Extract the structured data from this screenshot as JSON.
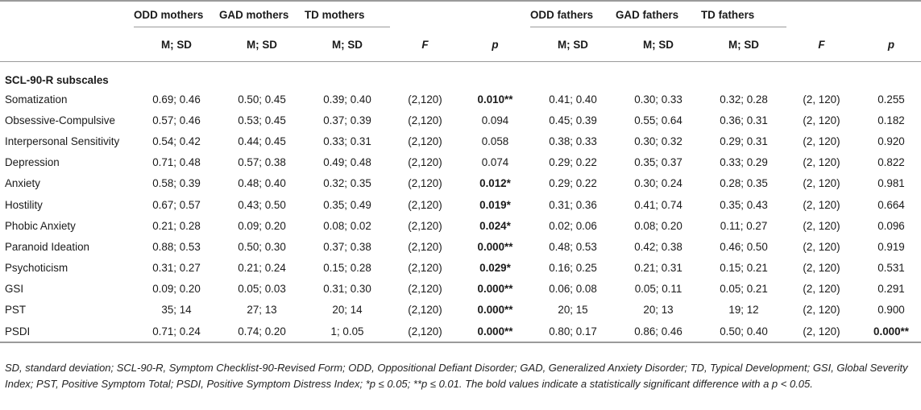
{
  "table": {
    "group_headers": [
      "ODD mothers",
      "GAD mothers",
      "TD mothers",
      "ODD fathers",
      "GAD fathers",
      "TD fathers"
    ],
    "sub_headers": [
      "M; SD",
      "M; SD",
      "M; SD",
      "F",
      "p",
      "M; SD",
      "M; SD",
      "M; SD",
      "F",
      "p"
    ],
    "section_label": "SCL-90-R subscales",
    "rows": [
      {
        "label": "Somatization",
        "cells": [
          "0.69; 0.46",
          "0.50; 0.45",
          "0.39; 0.40",
          "(2,120)",
          "0.010**",
          "0.41; 0.40",
          "0.30; 0.33",
          "0.32; 0.28",
          "(2, 120)",
          "0.255"
        ]
      },
      {
        "label": "Obsessive-Compulsive",
        "cells": [
          "0.57; 0.46",
          "0.53; 0.45",
          "0.37; 0.39",
          "(2,120)",
          "0.094",
          "0.45; 0.39",
          "0.55; 0.64",
          "0.36; 0.31",
          "(2, 120)",
          "0.182"
        ]
      },
      {
        "label": "Interpersonal Sensitivity",
        "cells": [
          "0.54; 0.42",
          "0.44; 0.45",
          "0.33; 0.31",
          "(2,120)",
          "0.058",
          "0.38; 0.33",
          "0.30; 0.32",
          "0.29; 0.31",
          "(2, 120)",
          "0.920"
        ]
      },
      {
        "label": "Depression",
        "cells": [
          "0.71; 0.48",
          "0.57; 0.38",
          "0.49; 0.48",
          "(2,120)",
          "0.074",
          "0.29; 0.22",
          "0.35; 0.37",
          "0.33; 0.29",
          "(2, 120)",
          "0.822"
        ]
      },
      {
        "label": "Anxiety",
        "cells": [
          "0.58; 0.39",
          "0.48; 0.40",
          "0.32; 0.35",
          "(2,120)",
          "0.012*",
          "0.29; 0.22",
          "0.30; 0.24",
          "0.28; 0.35",
          "(2, 120)",
          "0.981"
        ]
      },
      {
        "label": "Hostility",
        "cells": [
          "0.67; 0.57",
          "0.43; 0.50",
          "0.35; 0.49",
          "(2,120)",
          "0.019*",
          "0.31; 0.36",
          "0.41; 0.74",
          "0.35; 0.43",
          "(2, 120)",
          "0.664"
        ]
      },
      {
        "label": "Phobic Anxiety",
        "cells": [
          "0.21; 0.28",
          "0.09; 0.20",
          "0.08; 0.02",
          "(2,120)",
          "0.024*",
          "0.02; 0.06",
          "0.08; 0.20",
          "0.11; 0.27",
          "(2, 120)",
          "0.096"
        ]
      },
      {
        "label": "Paranoid Ideation",
        "cells": [
          "0.88; 0.53",
          "0.50; 0.30",
          "0.37; 0.38",
          "(2,120)",
          "0.000**",
          "0.48; 0.53",
          "0.42; 0.38",
          "0.46; 0.50",
          "(2, 120)",
          "0.919"
        ]
      },
      {
        "label": "Psychoticism",
        "cells": [
          "0.31; 0.27",
          "0.21; 0.24",
          "0.15; 0.28",
          "(2,120)",
          "0.029*",
          "0.16; 0.25",
          "0.21; 0.31",
          "0.15; 0.21",
          "(2, 120)",
          "0.531"
        ]
      },
      {
        "label": "GSI",
        "cells": [
          "0.09; 0.20",
          "0.05; 0.03",
          "0.31; 0.30",
          "(2,120)",
          "0.000**",
          "0.06; 0.08",
          "0.05; 0.11",
          "0.05; 0.21",
          "(2, 120)",
          "0.291"
        ]
      },
      {
        "label": "PST",
        "cells": [
          "35; 14",
          "27; 13",
          "20; 14",
          "(2,120)",
          "0.000**",
          "20; 15",
          "20; 13",
          "19; 12",
          "(2, 120)",
          "0.900"
        ]
      },
      {
        "label": "PSDI",
        "cells": [
          "0.71; 0.24",
          "0.74; 0.20",
          "1; 0.05",
          "(2,120)",
          "0.000**",
          "0.80; 0.17",
          "0.86; 0.46",
          "0.50; 0.40",
          "(2, 120)",
          "0.000**"
        ]
      }
    ],
    "bold_cells": [
      [
        0,
        4
      ],
      [
        4,
        4
      ],
      [
        5,
        4
      ],
      [
        6,
        4
      ],
      [
        7,
        4
      ],
      [
        8,
        4
      ],
      [
        9,
        4
      ],
      [
        10,
        4
      ],
      [
        11,
        4
      ],
      [
        11,
        9
      ]
    ]
  },
  "footnote": "SD, standard deviation; SCL-90-R, Symptom Checklist-90-Revised Form; ODD, Oppositional Defiant Disorder; GAD, Generalized Anxiety Disorder; TD, Typical Development; GSI, Global Severity Index; PST, Positive Symptom Total; PSDI, Positive Symptom Distress Index; *p ≤ 0.05; **p ≤ 0.01. The bold values indicate a statistically significant difference with a p < 0.05."
}
